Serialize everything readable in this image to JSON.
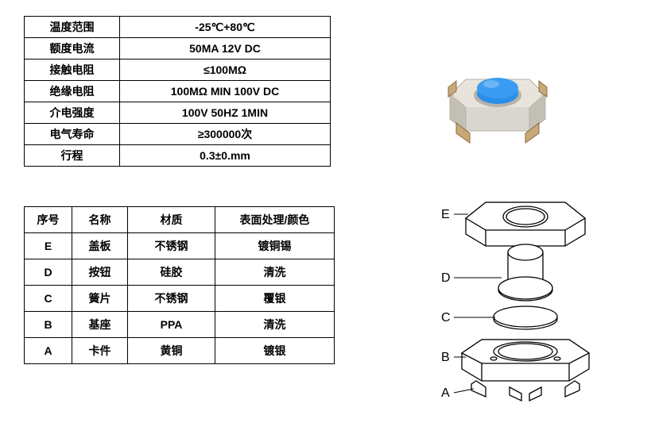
{
  "specs": {
    "rows": [
      {
        "label": "温度范围",
        "value": "-25℃+80℃"
      },
      {
        "label": "额度电流",
        "value": "50MA 12V DC"
      },
      {
        "label": "接触电阻",
        "value": "≤100MΩ"
      },
      {
        "label": "绝缘电阻",
        "value": "100MΩ MIN 100V DC"
      },
      {
        "label": "介电强度",
        "value": "100V 50HZ  1MIN"
      },
      {
        "label": "电气寿命",
        "value": "≥300000次"
      },
      {
        "label": "行程",
        "value": "0.3±0.mm"
      }
    ]
  },
  "parts": {
    "headers": {
      "seq": "序号",
      "name": "名称",
      "material": "材质",
      "finish": "表面处理/颜色"
    },
    "rows": [
      {
        "seq": "E",
        "name": "盖板",
        "material": "不锈钢",
        "finish": "镀铜锡"
      },
      {
        "seq": "D",
        "name": "按钮",
        "material": "硅胶",
        "finish": "清洗"
      },
      {
        "seq": "C",
        "name": "簧片",
        "material": "不锈钢",
        "finish": "覆银"
      },
      {
        "seq": "B",
        "name": "基座",
        "material": "PPA",
        "finish": "清洗"
      },
      {
        "seq": "A",
        "name": "卡件",
        "material": "黄铜",
        "finish": "镀银"
      }
    ]
  },
  "photo": {
    "body_color": "#d9d5cf",
    "body_shadow": "#b8b2a8",
    "button_color": "#2a8fe8",
    "button_highlight": "#6ab5f5",
    "leg_color": "#c9a878",
    "leg_shadow": "#8a6a40"
  },
  "diagram": {
    "labels": [
      "E",
      "D",
      "C",
      "B",
      "A"
    ],
    "line_color": "#000000",
    "fill_color": "#ffffff"
  }
}
